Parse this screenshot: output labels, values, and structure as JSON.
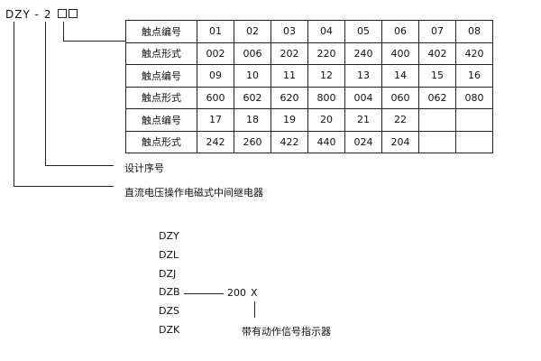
{
  "model_code": {
    "prefix": "DZY",
    "dash": "-",
    "digit": "2"
  },
  "table": {
    "rows": [
      {
        "label": "触点编号",
        "cells": [
          "01",
          "02",
          "03",
          "04",
          "05",
          "06",
          "07",
          "08"
        ]
      },
      {
        "label": "触点形式",
        "cells": [
          "002",
          "006",
          "202",
          "220",
          "240",
          "400",
          "402",
          "420"
        ]
      },
      {
        "label": "触点编号",
        "cells": [
          "09",
          "10",
          "11",
          "12",
          "13",
          "14",
          "15",
          "16"
        ]
      },
      {
        "label": "触点形式",
        "cells": [
          "600",
          "602",
          "620",
          "800",
          "004",
          "060",
          "062",
          "080"
        ]
      },
      {
        "label": "触点编号",
        "cells": [
          "17",
          "18",
          "19",
          "20",
          "21",
          "22",
          "",
          ""
        ]
      },
      {
        "label": "触点形式",
        "cells": [
          "242",
          "260",
          "422",
          "440",
          "024",
          "204",
          "",
          ""
        ]
      }
    ]
  },
  "labels": {
    "design_number": "设计序号",
    "relay_type": "直流电压操作电磁式中间继电器"
  },
  "variants": {
    "items": [
      "DZY",
      "DZL",
      "DZJ",
      "DZB",
      "DZS",
      "DZK"
    ],
    "code": "200",
    "suffix": "X",
    "suffix_label": "带有动作信号指示器"
  }
}
